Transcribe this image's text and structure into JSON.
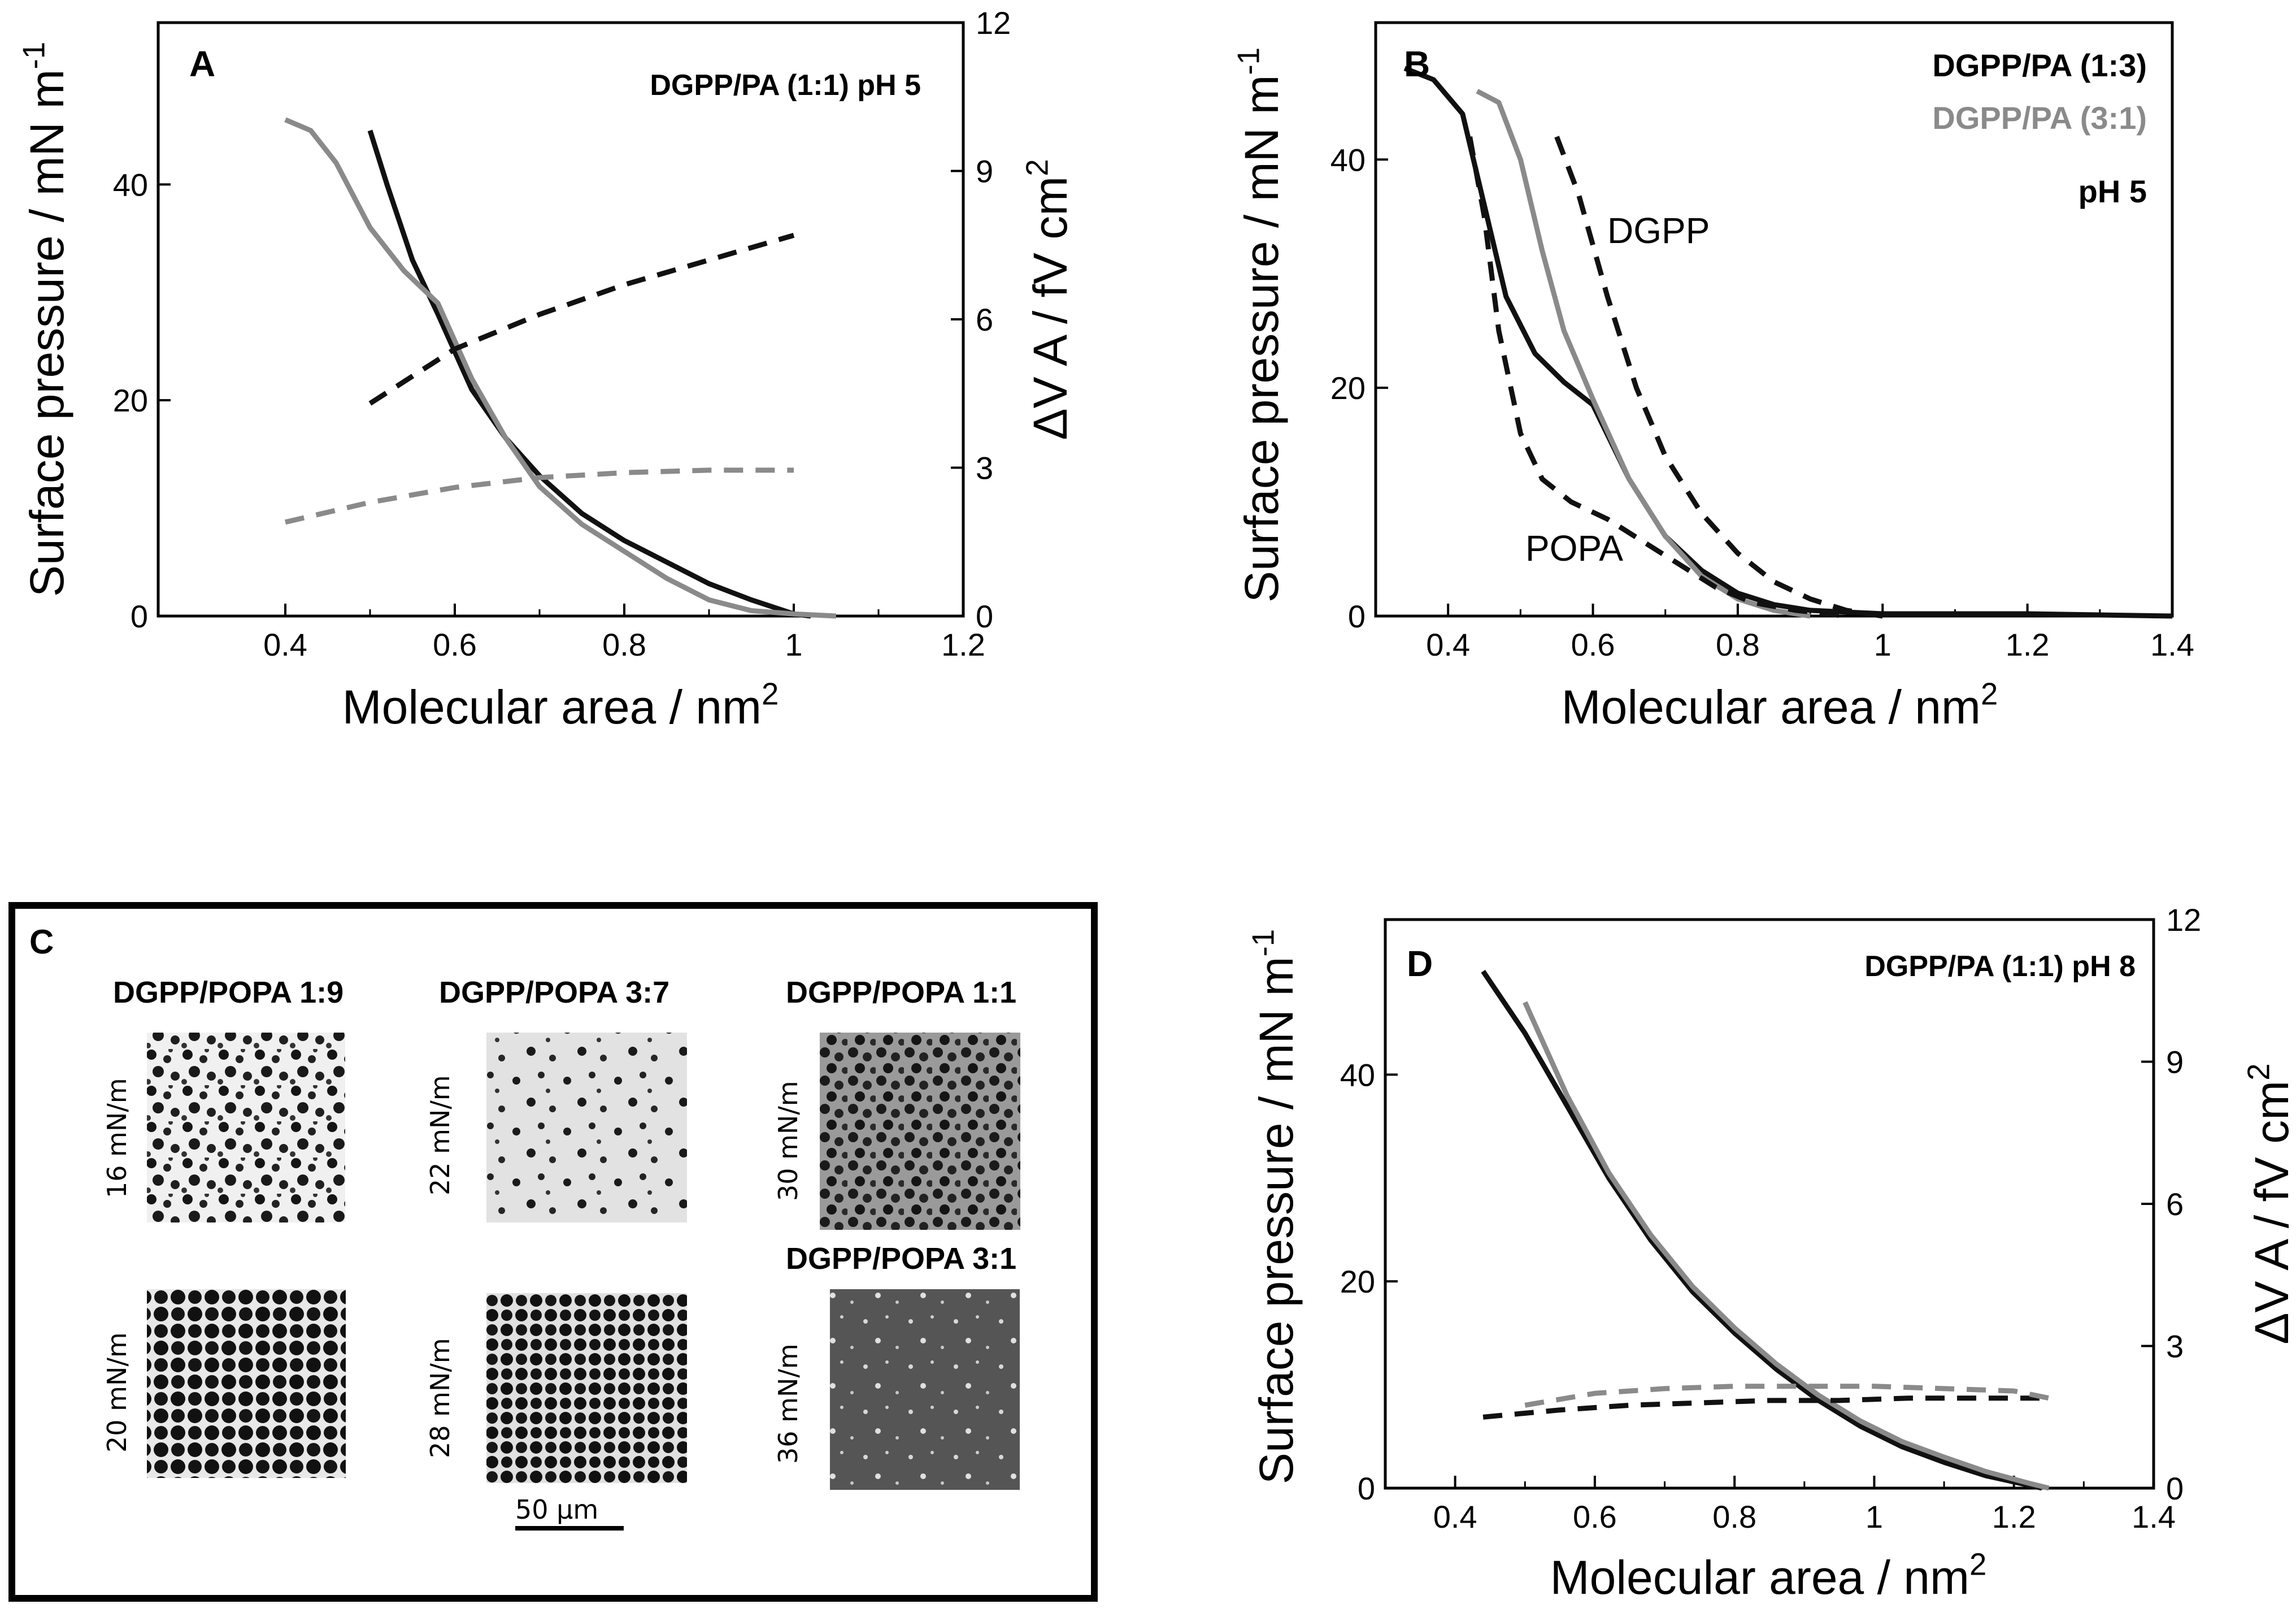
{
  "panels": {
    "A": {
      "letter": "A",
      "legend": "DGPP/PA (1:1) pH 5",
      "xlabel": "Molecular area / nm",
      "xlabel_sup": "2",
      "ylabel": "Surface pressure / mN m",
      "ylabel_sup": "-1",
      "y2label": "ΔV A / fV cm",
      "y2label_sup": "2"
    },
    "B": {
      "letter": "B",
      "legend_black": "DGPP/PA (1:3)",
      "legend_gray": "DGPP/PA (3:1)",
      "legend_ph": "pH 5",
      "annot_dgpp": "DGPP",
      "annot_popa": "POPA",
      "xlabel": "Molecular area / nm",
      "xlabel_sup": "2",
      "ylabel": "Surface pressure / mN m",
      "ylabel_sup": "-1"
    },
    "C": {
      "letter": "C",
      "col_titles": [
        "DGPP/POPA 1:9",
        "DGPP/POPA 3:7",
        "DGPP/POPA 1:1"
      ],
      "extra_title": "DGPP/POPA 3:1",
      "pressures": [
        "16 mN/m",
        "22 mN/m",
        "30 mN/m",
        "20 mN/m",
        "28 mN/m",
        "36 mN/m"
      ],
      "scale_label": "50 µm"
    },
    "D": {
      "letter": "D",
      "legend": "DGPP/PA (1:1) pH 8",
      "xlabel": "Molecular area / nm",
      "xlabel_sup": "2",
      "ylabel": "Surface pressure / mN m",
      "ylabel_sup": "-1",
      "y2label": "ΔV A / fV cm",
      "y2label_sup": "2"
    }
  },
  "colors": {
    "black": "#111111",
    "gray": "#8a8a8a"
  },
  "chart_data": [
    {
      "panel": "A",
      "type": "line",
      "title": "DGPP/PA (1:1) pH 5",
      "xlabel": "Molecular area / nm2",
      "ylabel": "Surface pressure / mN m-1",
      "y2label": "ΔV A / fV cm2",
      "xlim": [
        0.25,
        1.2
      ],
      "ylim": [
        0,
        55
      ],
      "y2lim": [
        0,
        12
      ],
      "xticks": [
        0.4,
        0.6,
        0.8,
        1.0,
        1.2
      ],
      "yticks": [
        0,
        20,
        40
      ],
      "y2ticks": [
        0,
        3,
        6,
        9,
        12
      ],
      "series": [
        {
          "name": "isotherm black",
          "color": "black",
          "style": "solid",
          "axis": "left",
          "x": [
            0.5,
            0.52,
            0.55,
            0.58,
            0.62,
            0.66,
            0.7,
            0.75,
            0.8,
            0.85,
            0.9,
            0.95,
            1.0,
            1.02
          ],
          "y": [
            45,
            40,
            33,
            28,
            21,
            16.5,
            13,
            9.5,
            7,
            5,
            3,
            1.5,
            0.2,
            0
          ]
        },
        {
          "name": "isotherm gray",
          "color": "gray",
          "style": "solid",
          "axis": "left",
          "x": [
            0.4,
            0.43,
            0.46,
            0.5,
            0.54,
            0.58,
            0.62,
            0.66,
            0.7,
            0.75,
            0.8,
            0.85,
            0.9,
            0.95,
            1.0,
            1.05
          ],
          "y": [
            46,
            45,
            42,
            36,
            32,
            29,
            22,
            16.5,
            12,
            8.5,
            6,
            3.5,
            1.5,
            0.5,
            0.2,
            0
          ]
        },
        {
          "name": "surface potential black",
          "color": "black",
          "style": "dashed",
          "axis": "right",
          "x": [
            0.5,
            0.6,
            0.7,
            0.8,
            0.9,
            1.0
          ],
          "y": [
            4.3,
            5.4,
            6.1,
            6.7,
            7.2,
            7.7
          ]
        },
        {
          "name": "surface potential gray",
          "color": "gray",
          "style": "dashed",
          "axis": "right",
          "x": [
            0.4,
            0.5,
            0.6,
            0.7,
            0.8,
            0.9,
            1.0
          ],
          "y": [
            1.9,
            2.3,
            2.6,
            2.8,
            2.9,
            2.95,
            2.95
          ]
        }
      ]
    },
    {
      "panel": "B",
      "type": "line",
      "title": "DGPP/PA pH 5",
      "xlabel": "Molecular area / nm2",
      "ylabel": "Surface pressure / mN m-1",
      "xlim": [
        0.3,
        1.4
      ],
      "ylim": [
        0,
        52
      ],
      "xticks": [
        0.4,
        0.6,
        0.8,
        1.0,
        1.2,
        1.4
      ],
      "yticks": [
        0,
        20,
        40
      ],
      "series": [
        {
          "name": "DGPP/PA (1:3)",
          "color": "black",
          "style": "solid",
          "x": [
            0.34,
            0.38,
            0.42,
            0.45,
            0.48,
            0.52,
            0.56,
            0.6,
            0.65,
            0.7,
            0.75,
            0.8,
            0.85,
            0.9,
            1.0,
            1.2,
            1.4
          ],
          "y": [
            48,
            47,
            44,
            36,
            28,
            23,
            20.5,
            18.5,
            12,
            7,
            4,
            2,
            1,
            0.5,
            0.2,
            0.2,
            0
          ]
        },
        {
          "name": "DGPP/PA (3:1)",
          "color": "gray",
          "style": "solid",
          "x": [
            0.44,
            0.47,
            0.5,
            0.53,
            0.56,
            0.6,
            0.65,
            0.7,
            0.75,
            0.8,
            0.85,
            0.9
          ],
          "y": [
            46,
            45,
            40,
            32,
            25,
            19,
            12,
            7,
            3.5,
            1.5,
            0.5,
            0
          ]
        },
        {
          "name": "DGPP",
          "color": "black",
          "style": "dashed",
          "x": [
            0.55,
            0.58,
            0.62,
            0.66,
            0.7,
            0.75,
            0.8,
            0.85,
            0.9,
            0.95,
            1.0
          ],
          "y": [
            42,
            37,
            28,
            20,
            14,
            9,
            5.5,
            3,
            1.5,
            0.5,
            0
          ]
        },
        {
          "name": "POPA",
          "color": "black",
          "style": "dashed",
          "x": [
            0.43,
            0.45,
            0.47,
            0.5,
            0.53,
            0.57,
            0.62,
            0.67,
            0.72,
            0.77,
            0.82,
            0.88,
            0.95
          ],
          "y": [
            42,
            35,
            25,
            16,
            12,
            10,
            8.5,
            6.5,
            4.5,
            2.5,
            1.2,
            0.5,
            0
          ]
        }
      ],
      "annotations": [
        "DGPP",
        "POPA"
      ]
    },
    {
      "panel": "D",
      "type": "line",
      "title": "DGPP/PA (1:1) pH 8",
      "xlabel": "Molecular area / nm2",
      "ylabel": "Surface pressure / mN m-1",
      "y2label": "ΔV A / fV cm2",
      "xlim": [
        0.3,
        1.4
      ],
      "ylim": [
        0,
        55
      ],
      "y2lim": [
        0,
        12
      ],
      "xticks": [
        0.4,
        0.6,
        0.8,
        1.0,
        1.2,
        1.4
      ],
      "yticks": [
        0,
        20,
        40
      ],
      "y2ticks": [
        0,
        3,
        6,
        9,
        12
      ],
      "series": [
        {
          "name": "isotherm black",
          "color": "black",
          "style": "solid",
          "axis": "left",
          "x": [
            0.44,
            0.5,
            0.56,
            0.62,
            0.68,
            0.74,
            0.8,
            0.86,
            0.92,
            0.98,
            1.04,
            1.1,
            1.16,
            1.22,
            1.24
          ],
          "y": [
            50,
            44,
            37,
            30,
            24,
            19,
            15,
            11.5,
            8.5,
            6,
            4,
            2.5,
            1.2,
            0.3,
            0
          ]
        },
        {
          "name": "isotherm gray",
          "color": "gray",
          "style": "solid",
          "axis": "left",
          "x": [
            0.5,
            0.52,
            0.56,
            0.62,
            0.68,
            0.74,
            0.8,
            0.86,
            0.92,
            0.98,
            1.04,
            1.1,
            1.16,
            1.22,
            1.25
          ],
          "y": [
            47,
            44,
            38,
            30.5,
            24.5,
            19.5,
            15.5,
            12,
            9,
            6.5,
            4.5,
            3,
            1.6,
            0.5,
            0
          ]
        },
        {
          "name": "surface potential black",
          "color": "black",
          "style": "dashed",
          "axis": "right",
          "x": [
            0.44,
            0.55,
            0.65,
            0.75,
            0.85,
            0.95,
            1.05,
            1.15,
            1.25
          ],
          "y": [
            1.5,
            1.65,
            1.75,
            1.8,
            1.85,
            1.85,
            1.9,
            1.9,
            1.9
          ]
        },
        {
          "name": "surface potential gray",
          "color": "gray",
          "style": "dashed",
          "axis": "right",
          "x": [
            0.5,
            0.6,
            0.7,
            0.8,
            0.9,
            1.0,
            1.1,
            1.2,
            1.25
          ],
          "y": [
            1.75,
            2.0,
            2.1,
            2.15,
            2.15,
            2.15,
            2.1,
            2.05,
            1.9
          ]
        }
      ]
    }
  ]
}
